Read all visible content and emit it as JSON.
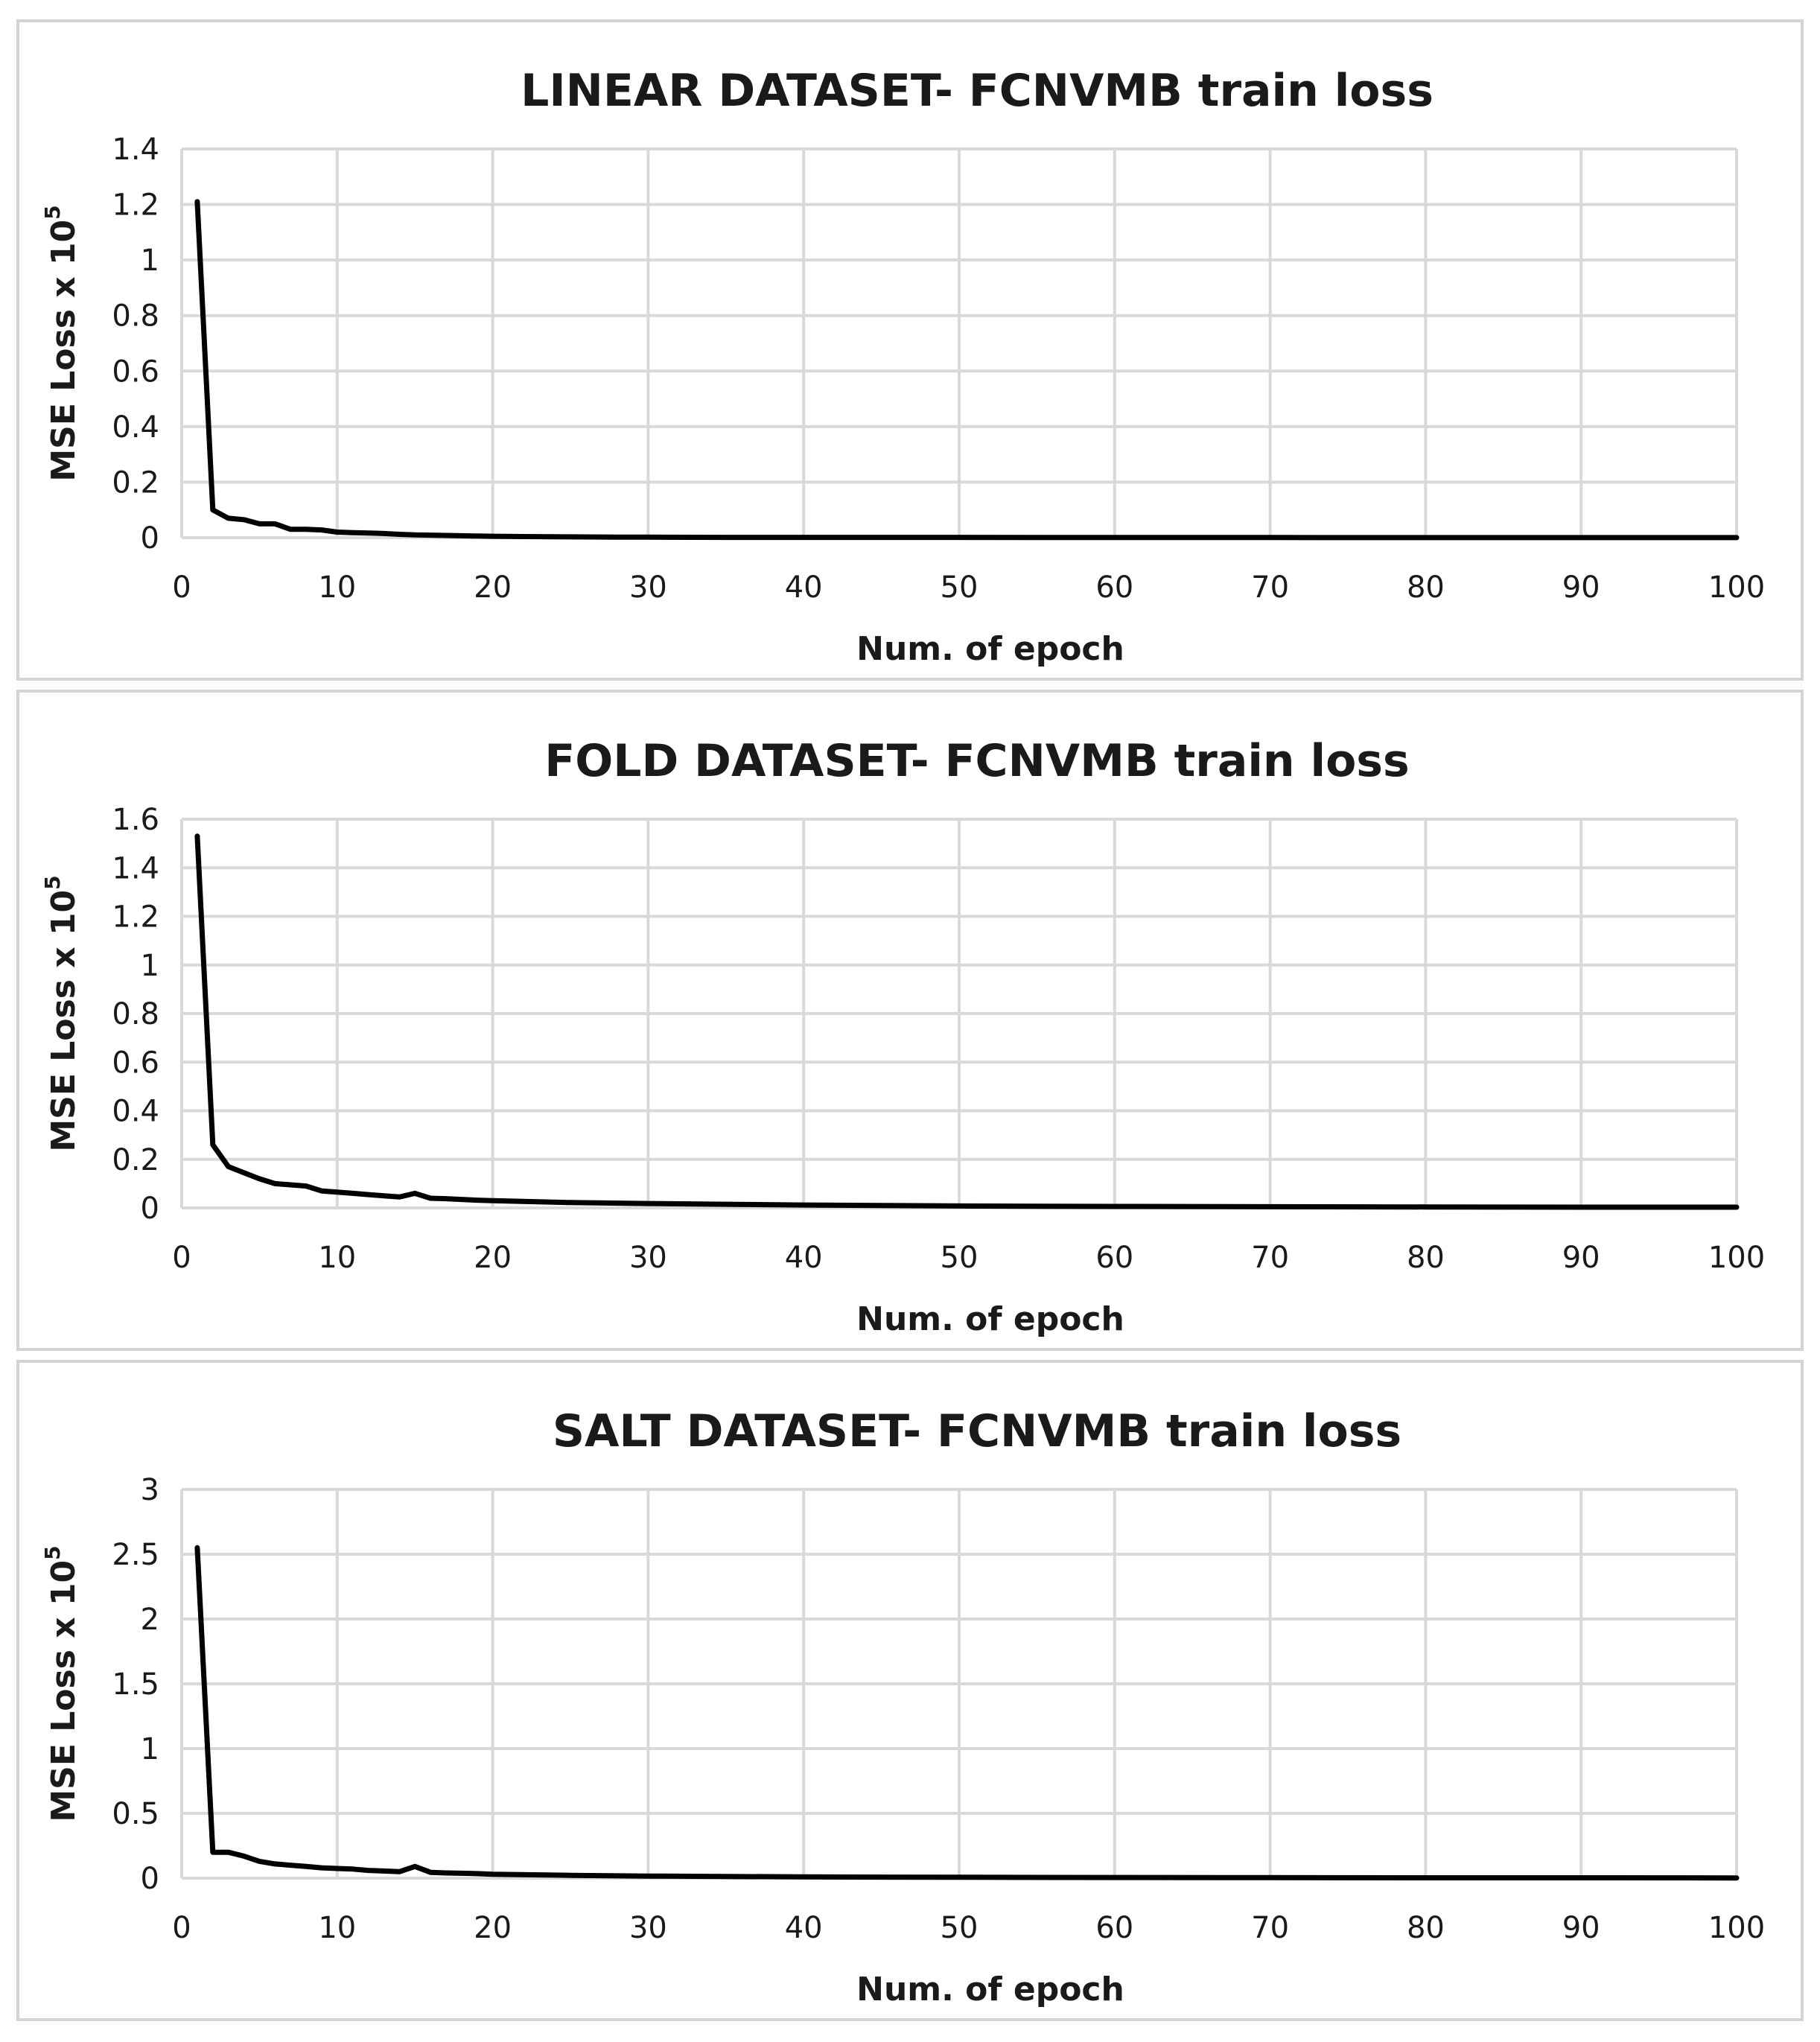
{
  "chart_data": [
    {
      "type": "line",
      "title": "LINEAR DATASET- FCNVMB train loss",
      "xlabel": "Num. of epoch",
      "ylabel": "MSE Loss  x 10",
      "ylabel_exponent": "5",
      "xlim": [
        0,
        100
      ],
      "ylim": [
        0,
        1.4
      ],
      "xticks": [
        "0",
        "10",
        "20",
        "30",
        "40",
        "50",
        "60",
        "70",
        "80",
        "90",
        "100"
      ],
      "yticks": [
        "0",
        "0.2",
        "0.4",
        "0.6",
        "0.8",
        "1",
        "1.2",
        "1.4"
      ],
      "grid": true,
      "legend": "none",
      "series": [
        {
          "color": "#000000",
          "x": [
            1,
            2,
            3,
            4,
            5,
            6,
            7,
            8,
            9,
            10,
            11,
            12,
            13,
            14,
            15,
            16,
            17,
            18,
            19,
            20,
            22,
            25,
            28,
            30,
            35,
            40,
            50,
            60,
            70,
            80,
            90,
            100
          ],
          "y": [
            1.21,
            0.1,
            0.07,
            0.065,
            0.05,
            0.05,
            0.03,
            0.03,
            0.028,
            0.02,
            0.018,
            0.017,
            0.015,
            0.012,
            0.01,
            0.009,
            0.008,
            0.007,
            0.006,
            0.005,
            0.004,
            0.003,
            0.002,
            0.002,
            0.001,
            0.001,
            0.001,
            0.0005,
            0.0005,
            0.0003,
            0.0003,
            0.0002
          ]
        }
      ]
    },
    {
      "type": "line",
      "title": "FOLD DATASET- FCNVMB train loss",
      "xlabel": "Num. of epoch",
      "ylabel": "MSE Loss  x 10",
      "ylabel_exponent": "5",
      "xlim": [
        0,
        100
      ],
      "ylim": [
        0,
        1.6
      ],
      "xticks": [
        "0",
        "10",
        "20",
        "30",
        "40",
        "50",
        "60",
        "70",
        "80",
        "90",
        "100"
      ],
      "yticks": [
        "0",
        "0.2",
        "0.4",
        "0.6",
        "0.8",
        "1",
        "1.2",
        "1.4",
        "1.6"
      ],
      "grid": true,
      "legend": "none",
      "series": [
        {
          "color": "#000000",
          "x": [
            1,
            2,
            3,
            4,
            5,
            6,
            7,
            8,
            9,
            10,
            11,
            12,
            13,
            14,
            15,
            16,
            17,
            18,
            19,
            20,
            25,
            30,
            35,
            40,
            45,
            50,
            60,
            70,
            80,
            90,
            100
          ],
          "y": [
            1.53,
            0.26,
            0.17,
            0.145,
            0.12,
            0.1,
            0.095,
            0.09,
            0.07,
            0.065,
            0.06,
            0.055,
            0.05,
            0.045,
            0.06,
            0.04,
            0.038,
            0.035,
            0.032,
            0.03,
            0.022,
            0.018,
            0.015,
            0.012,
            0.01,
            0.008,
            0.006,
            0.005,
            0.004,
            0.003,
            0.003
          ]
        }
      ]
    },
    {
      "type": "line",
      "title": "SALT DATASET- FCNVMB train loss",
      "xlabel": "Num. of epoch",
      "ylabel": "MSE Loss  x 10",
      "ylabel_exponent": "5",
      "xlim": [
        0,
        100
      ],
      "ylim": [
        0,
        3
      ],
      "xticks": [
        "0",
        "10",
        "20",
        "30",
        "40",
        "50",
        "60",
        "70",
        "80",
        "90",
        "100"
      ],
      "yticks": [
        "0",
        "0.5",
        "1",
        "1.5",
        "2",
        "2.5",
        "3"
      ],
      "grid": true,
      "legend": "none",
      "series": [
        {
          "color": "#000000",
          "x": [
            1,
            2,
            3,
            4,
            5,
            6,
            7,
            8,
            9,
            10,
            11,
            12,
            13,
            14,
            15,
            16,
            17,
            18,
            19,
            20,
            25,
            30,
            35,
            40,
            45,
            50,
            60,
            70,
            80,
            90,
            100
          ],
          "y": [
            2.55,
            0.2,
            0.2,
            0.17,
            0.13,
            0.11,
            0.1,
            0.09,
            0.08,
            0.075,
            0.07,
            0.06,
            0.055,
            0.05,
            0.09,
            0.045,
            0.04,
            0.038,
            0.035,
            0.03,
            0.022,
            0.016,
            0.013,
            0.01,
            0.008,
            0.007,
            0.005,
            0.004,
            0.003,
            0.003,
            0.002
          ]
        }
      ]
    }
  ]
}
